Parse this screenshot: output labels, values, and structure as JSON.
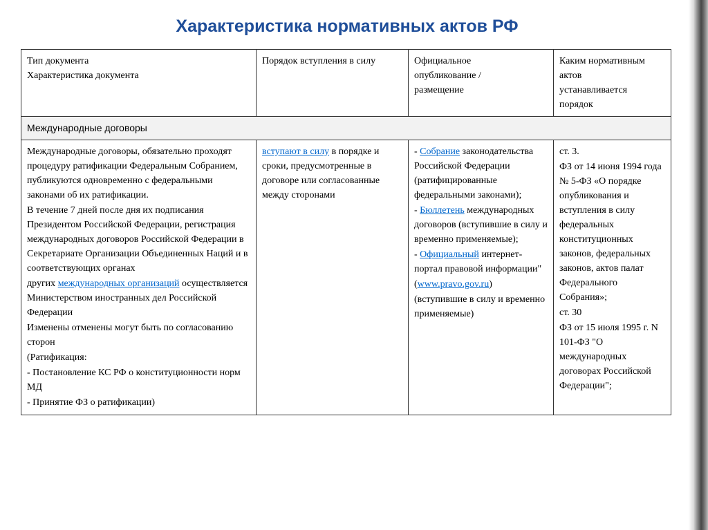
{
  "colors": {
    "title": "#1f4e99",
    "link": "#0066cc",
    "section_bg": "#f2f2f2",
    "border": "#333333",
    "background": "#ffffff"
  },
  "title": "Характеристика нормативных актов РФ",
  "header": {
    "col1_line1": "Тип документа",
    "col1_line2": "Характеристика документа",
    "col2": "Порядок вступления в силу",
    "col3_line1": "Официальное",
    "col3_line2": "опубликование /",
    "col3_line3": "размещение",
    "col4_line1": "Каким нормативным",
    "col4_line2": "актов",
    "col4_line3": "устанавливается",
    "col4_line4": "порядок"
  },
  "section": "Международные договоры",
  "row": {
    "c1": {
      "p1": "Международные договоры,  обязательно проходят процедуру ратификации Федеральным Собранием, публикуются одновременно с федеральными законами об их ратификации.",
      "p2": "В течение 7 дней после дня их подписания Президентом Российской Федерации, регистрация международных договоров Российской Федерации  в Секретариате Организации Объединенных Наций и в соответствующих органах",
      "p3a": "других ",
      "p3link": "международных организаций",
      "p3b": " осуществляется Министерством иностранных дел Российской Федерации",
      "p4": "Изменены отменены могут быть по согласованию сторон",
      "p5": "(Ратификация:",
      "p6": "- Постановление КС РФ о конституционности норм МД",
      "p7": "- Принятие ФЗ о ратификации)"
    },
    "c2": {
      "link": "вступают в силу",
      "rest": " в порядке и сроки, предусмотренные в договоре или согласованные между сторонами"
    },
    "c3": {
      "a_dash": "- ",
      "a_link": "Собрание",
      "a_rest": " законодательства Российской Федерации (ратифицированные федеральными законами);",
      "b_dash": "- ",
      "b_link": "Бюллетень",
      "b_rest": " международных договоров (вступившие в силу и временно применяемые);",
      "c_dash": "- ",
      "c_link": "Официальный",
      "c_rest": " интернет-портал правовой информации\"",
      "d_open": "(",
      "d_link": "www.pravo.gov.ru",
      "d_close": ")",
      "e": "(вступившие в силу и временно применяемые)"
    },
    "c4": {
      "p1": "ст. 3.",
      "p2": "ФЗ от 14 июня 1994 года № 5-ФЗ «О порядке опубликования и вступления в силу федеральных конституционных законов, федеральных законов, актов палат Федерального Собрания»;",
      "p3": "ст. 30",
      "p4": "ФЗ от 15 июля 1995 г. N 101-ФЗ \"О международных договорах Российской Федерации\";"
    }
  }
}
